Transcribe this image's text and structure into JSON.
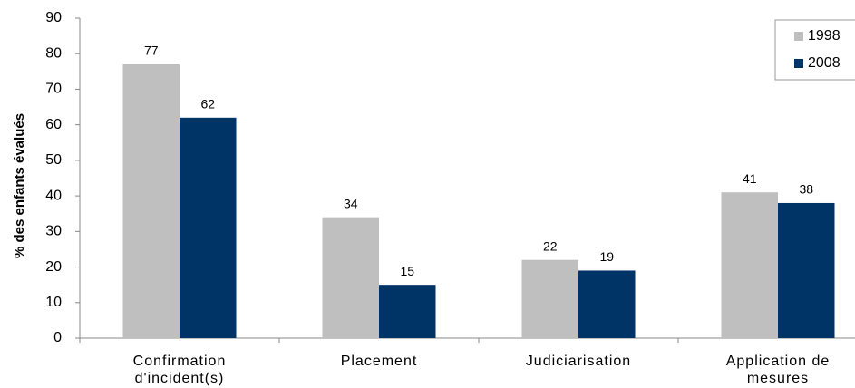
{
  "chart_data": {
    "type": "bar",
    "y_label": "% des enfants évalués",
    "categories": [
      "Confirmation d'incident(s)",
      "Placement",
      "Judiciarisation",
      "Application de mesures"
    ],
    "series": [
      {
        "name": "1998",
        "color": "#bfbfbf",
        "values": [
          77,
          34,
          22,
          41
        ]
      },
      {
        "name": "2008",
        "color": "#003366",
        "values": [
          62,
          15,
          19,
          38
        ]
      }
    ],
    "ylim": [
      0,
      90
    ],
    "yticks": [
      0,
      10,
      20,
      30,
      40,
      50,
      60,
      70,
      80,
      90
    ],
    "legend": "top-right"
  }
}
